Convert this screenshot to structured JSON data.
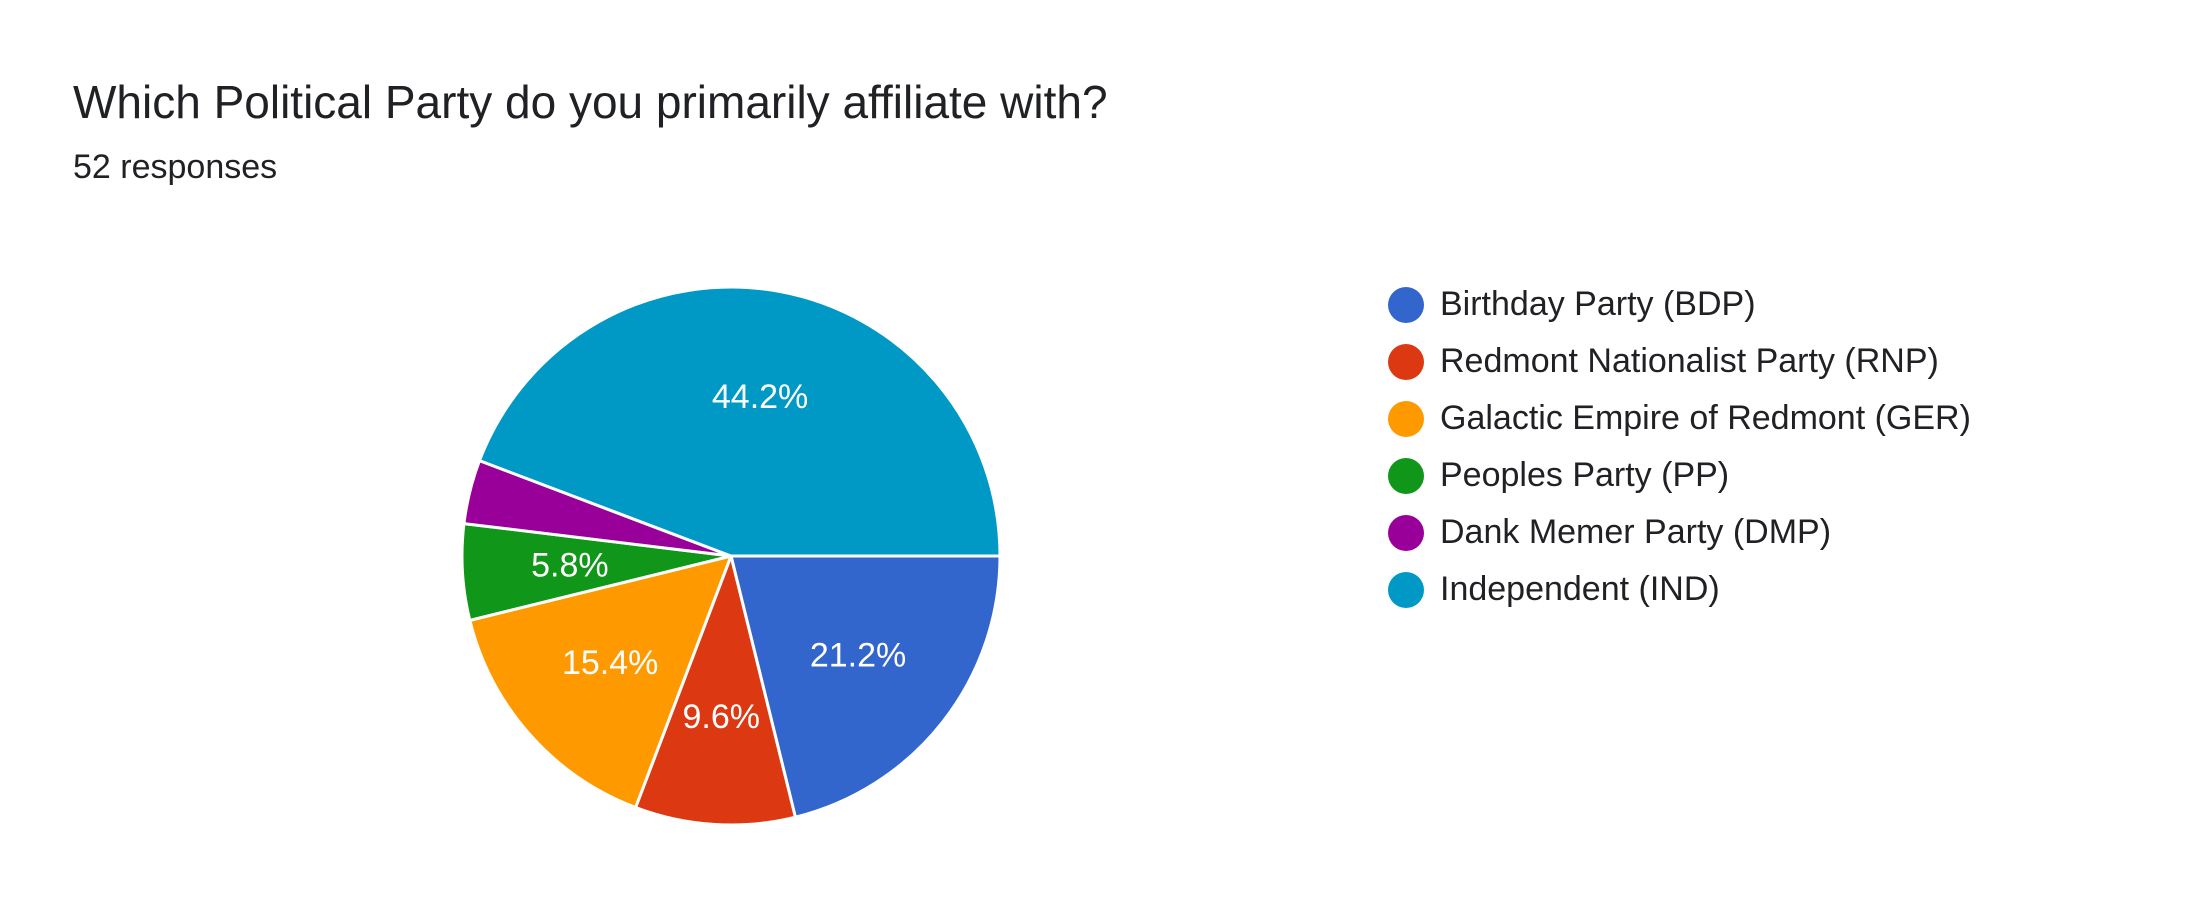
{
  "form": {
    "question": "Which Political Party do you primarily affiliate with?",
    "responses": "52 responses"
  },
  "chart_data": {
    "type": "pie",
    "title": "Which Political Party do you primarily affiliate with?",
    "subtitle": "52 responses",
    "total_responses": 52,
    "legend_position": "right",
    "slices": [
      {
        "label": "Birthday Party (BDP)",
        "count": 11,
        "percent": 21.2,
        "percent_label": "21.2%",
        "color": "#3366cc"
      },
      {
        "label": "Redmont Nationalist Party (RNP)",
        "count": 5,
        "percent": 9.6,
        "percent_label": "9.6%",
        "color": "#dc3912"
      },
      {
        "label": "Galactic Empire of Redmont (GER)",
        "count": 8,
        "percent": 15.4,
        "percent_label": "15.4%",
        "color": "#ff9900"
      },
      {
        "label": "Peoples Party (PP)",
        "count": 3,
        "percent": 5.8,
        "percent_label": "5.8%",
        "color": "#109618"
      },
      {
        "label": "Dank Memer Party (DMP)",
        "count": 2,
        "percent": 3.8,
        "percent_label": "",
        "color": "#990099"
      },
      {
        "label": "Independent (IND)",
        "count": 23,
        "percent": 44.2,
        "percent_label": "44.2%",
        "color": "#0099c6"
      }
    ]
  }
}
